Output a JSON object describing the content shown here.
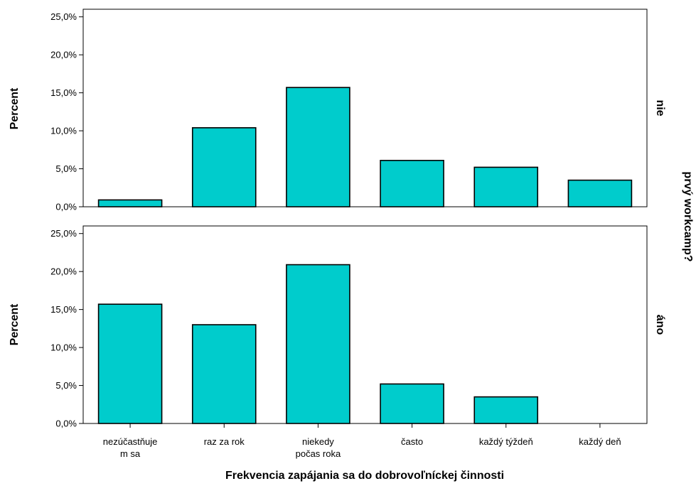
{
  "chart_data": {
    "type": "bar",
    "xlabel": "Frekvencia zapájania sa do dobrovoľníckej činnosti",
    "ylabel": "Percent",
    "facet_title": "prvý workcamp?",
    "categories": [
      [
        "nezúčastňuje",
        "m sa"
      ],
      [
        "raz za rok"
      ],
      [
        "niekedy",
        "počas roka"
      ],
      [
        "často"
      ],
      [
        "každý týždeň"
      ],
      [
        "každý deň"
      ]
    ],
    "ylim": [
      0,
      26
    ],
    "yticks": [
      0,
      5,
      10,
      15,
      20,
      25
    ],
    "ytick_labels": [
      "0,0%",
      "5,0%",
      "10,0%",
      "15,0%",
      "20,0%",
      "25,0%"
    ],
    "bar_color": "#00CCCC",
    "panels": [
      {
        "label": "nie",
        "values": [
          0.9,
          10.4,
          15.7,
          6.1,
          5.2,
          3.5
        ]
      },
      {
        "label": "áno",
        "values": [
          15.7,
          13.0,
          20.9,
          5.2,
          3.5,
          0.0
        ]
      }
    ]
  }
}
